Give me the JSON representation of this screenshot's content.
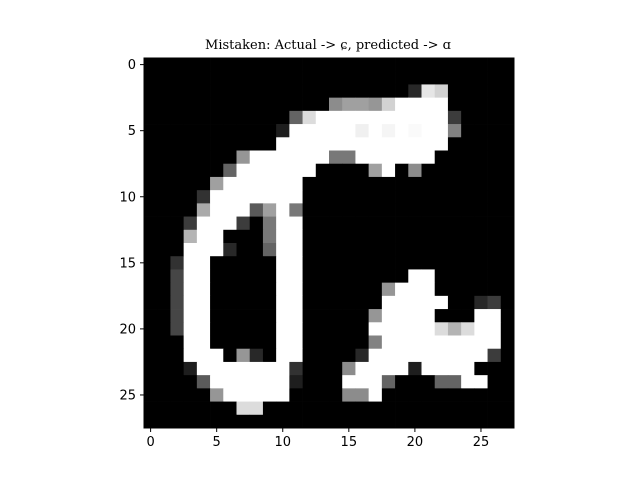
{
  "chart_data": {
    "type": "heatmap",
    "title": "Mistaken: Actual -> ɕ, predicted -> ɑ",
    "colormap": "gray",
    "grid": false,
    "xlabel": "",
    "ylabel": "",
    "xlim": [
      -0.5,
      27.5
    ],
    "ylim": [
      27.5,
      -0.5
    ],
    "xticks": [
      0,
      5,
      10,
      15,
      20,
      25
    ],
    "yticks": [
      0,
      5,
      10,
      15,
      20,
      25
    ],
    "xtick_labels": [
      "0",
      "5",
      "10",
      "15",
      "20",
      "25"
    ],
    "ytick_labels": [
      "0",
      "5",
      "10",
      "15",
      "20",
      "25"
    ],
    "values": [
      [
        0,
        0,
        0,
        0,
        0,
        0,
        0,
        0,
        0,
        0,
        0,
        0,
        0,
        0,
        0,
        0,
        0,
        0,
        0,
        0,
        0,
        0,
        0,
        0,
        0,
        0,
        0,
        0
      ],
      [
        0,
        0,
        0,
        0,
        0,
        0,
        0,
        0,
        0,
        0,
        0,
        0,
        0,
        0,
        0,
        0,
        0,
        0,
        0,
        0,
        0,
        0,
        0,
        0,
        0,
        0,
        0,
        0
      ],
      [
        0,
        0,
        0,
        0,
        0,
        0,
        0,
        0,
        0,
        0,
        0,
        0,
        0,
        0,
        0,
        0,
        0,
        0,
        0,
        0,
        40,
        230,
        210,
        0,
        0,
        0,
        0,
        0
      ],
      [
        0,
        0,
        0,
        0,
        0,
        0,
        0,
        0,
        0,
        0,
        0,
        0,
        0,
        0,
        140,
        160,
        160,
        150,
        210,
        255,
        255,
        255,
        255,
        0,
        0,
        0,
        0,
        0
      ],
      [
        0,
        0,
        0,
        0,
        0,
        0,
        0,
        0,
        0,
        0,
        0,
        100,
        220,
        255,
        255,
        255,
        255,
        255,
        255,
        255,
        255,
        255,
        255,
        60,
        0,
        0,
        0,
        0
      ],
      [
        0,
        0,
        0,
        0,
        0,
        0,
        0,
        0,
        0,
        0,
        30,
        255,
        255,
        255,
        255,
        255,
        240,
        255,
        245,
        255,
        250,
        255,
        255,
        130,
        0,
        0,
        0,
        0
      ],
      [
        0,
        0,
        0,
        0,
        0,
        0,
        0,
        0,
        0,
        0,
        255,
        255,
        255,
        255,
        255,
        255,
        255,
        255,
        255,
        255,
        255,
        255,
        255,
        0,
        0,
        0,
        0,
        0
      ],
      [
        0,
        0,
        0,
        0,
        0,
        0,
        0,
        150,
        255,
        255,
        255,
        255,
        255,
        255,
        120,
        120,
        255,
        255,
        255,
        255,
        255,
        255,
        0,
        0,
        0,
        0,
        0,
        0
      ],
      [
        0,
        0,
        0,
        0,
        0,
        0,
        100,
        255,
        255,
        255,
        255,
        255,
        255,
        0,
        0,
        0,
        0,
        160,
        255,
        0,
        140,
        0,
        0,
        0,
        0,
        0,
        0,
        0
      ],
      [
        0,
        0,
        0,
        0,
        0,
        160,
        255,
        255,
        255,
        255,
        255,
        255,
        0,
        0,
        0,
        0,
        0,
        0,
        0,
        0,
        0,
        0,
        0,
        0,
        0,
        0,
        0,
        0
      ],
      [
        0,
        0,
        0,
        0,
        50,
        255,
        255,
        255,
        255,
        255,
        255,
        255,
        0,
        0,
        0,
        0,
        0,
        0,
        0,
        0,
        0,
        0,
        0,
        0,
        0,
        0,
        0,
        0
      ],
      [
        0,
        0,
        0,
        0,
        170,
        255,
        255,
        255,
        90,
        160,
        255,
        120,
        0,
        0,
        0,
        0,
        0,
        0,
        0,
        0,
        0,
        0,
        0,
        0,
        0,
        0,
        0,
        0
      ],
      [
        0,
        0,
        0,
        60,
        255,
        255,
        255,
        60,
        0,
        120,
        255,
        255,
        0,
        0,
        0,
        0,
        0,
        0,
        0,
        0,
        0,
        0,
        0,
        0,
        0,
        0,
        0,
        0
      ],
      [
        0,
        0,
        0,
        180,
        255,
        255,
        0,
        0,
        0,
        120,
        255,
        255,
        0,
        0,
        0,
        0,
        0,
        0,
        0,
        0,
        0,
        0,
        0,
        0,
        0,
        0,
        0,
        0
      ],
      [
        0,
        0,
        0,
        255,
        255,
        255,
        40,
        0,
        0,
        100,
        255,
        255,
        0,
        0,
        0,
        0,
        0,
        0,
        0,
        0,
        0,
        0,
        0,
        0,
        0,
        0,
        0,
        0
      ],
      [
        0,
        0,
        50,
        255,
        255,
        0,
        0,
        0,
        0,
        0,
        255,
        255,
        0,
        0,
        0,
        0,
        0,
        0,
        0,
        0,
        0,
        0,
        0,
        0,
        0,
        0,
        0,
        0
      ],
      [
        0,
        0,
        70,
        255,
        255,
        0,
        0,
        0,
        0,
        0,
        255,
        255,
        0,
        0,
        0,
        0,
        0,
        0,
        0,
        0,
        255,
        255,
        0,
        0,
        0,
        0,
        0,
        0
      ],
      [
        0,
        0,
        70,
        255,
        255,
        0,
        0,
        0,
        0,
        0,
        255,
        255,
        0,
        0,
        0,
        0,
        0,
        0,
        150,
        255,
        255,
        255,
        0,
        0,
        0,
        0,
        0,
        0
      ],
      [
        0,
        0,
        70,
        255,
        255,
        0,
        0,
        0,
        0,
        0,
        255,
        255,
        0,
        0,
        0,
        0,
        0,
        0,
        255,
        255,
        255,
        255,
        255,
        0,
        0,
        40,
        60,
        0
      ],
      [
        0,
        0,
        70,
        255,
        255,
        0,
        0,
        0,
        0,
        0,
        255,
        255,
        0,
        0,
        0,
        0,
        0,
        150,
        255,
        255,
        255,
        255,
        0,
        0,
        0,
        255,
        255,
        0
      ],
      [
        0,
        0,
        70,
        255,
        255,
        0,
        0,
        0,
        0,
        0,
        255,
        255,
        0,
        0,
        0,
        0,
        0,
        255,
        255,
        255,
        255,
        255,
        220,
        180,
        220,
        255,
        255,
        0
      ],
      [
        0,
        0,
        0,
        255,
        255,
        0,
        0,
        0,
        0,
        0,
        255,
        255,
        0,
        0,
        0,
        0,
        0,
        130,
        255,
        255,
        255,
        255,
        255,
        255,
        255,
        255,
        255,
        0
      ],
      [
        0,
        0,
        0,
        255,
        255,
        255,
        0,
        150,
        40,
        0,
        255,
        255,
        0,
        0,
        0,
        0,
        40,
        255,
        255,
        255,
        255,
        255,
        255,
        255,
        255,
        255,
        60,
        0
      ],
      [
        0,
        0,
        0,
        30,
        255,
        255,
        255,
        255,
        255,
        255,
        255,
        50,
        0,
        0,
        0,
        140,
        255,
        255,
        255,
        255,
        30,
        255,
        255,
        255,
        255,
        0,
        0,
        0
      ],
      [
        0,
        0,
        0,
        0,
        90,
        255,
        255,
        255,
        255,
        255,
        255,
        30,
        0,
        0,
        0,
        255,
        255,
        255,
        100,
        0,
        0,
        0,
        100,
        100,
        255,
        255,
        0,
        0
      ],
      [
        0,
        0,
        0,
        0,
        0,
        150,
        255,
        255,
        255,
        255,
        255,
        0,
        0,
        0,
        0,
        140,
        140,
        255,
        0,
        0,
        0,
        0,
        0,
        0,
        0,
        0,
        0,
        0
      ],
      [
        0,
        0,
        0,
        0,
        0,
        0,
        0,
        220,
        220,
        0,
        0,
        0,
        0,
        0,
        0,
        0,
        0,
        0,
        0,
        0,
        0,
        0,
        0,
        0,
        0,
        0,
        0,
        0
      ],
      [
        0,
        0,
        0,
        0,
        0,
        0,
        0,
        0,
        0,
        0,
        0,
        0,
        0,
        0,
        0,
        0,
        0,
        0,
        0,
        0,
        0,
        0,
        0,
        0,
        0,
        0,
        0,
        0
      ]
    ]
  }
}
